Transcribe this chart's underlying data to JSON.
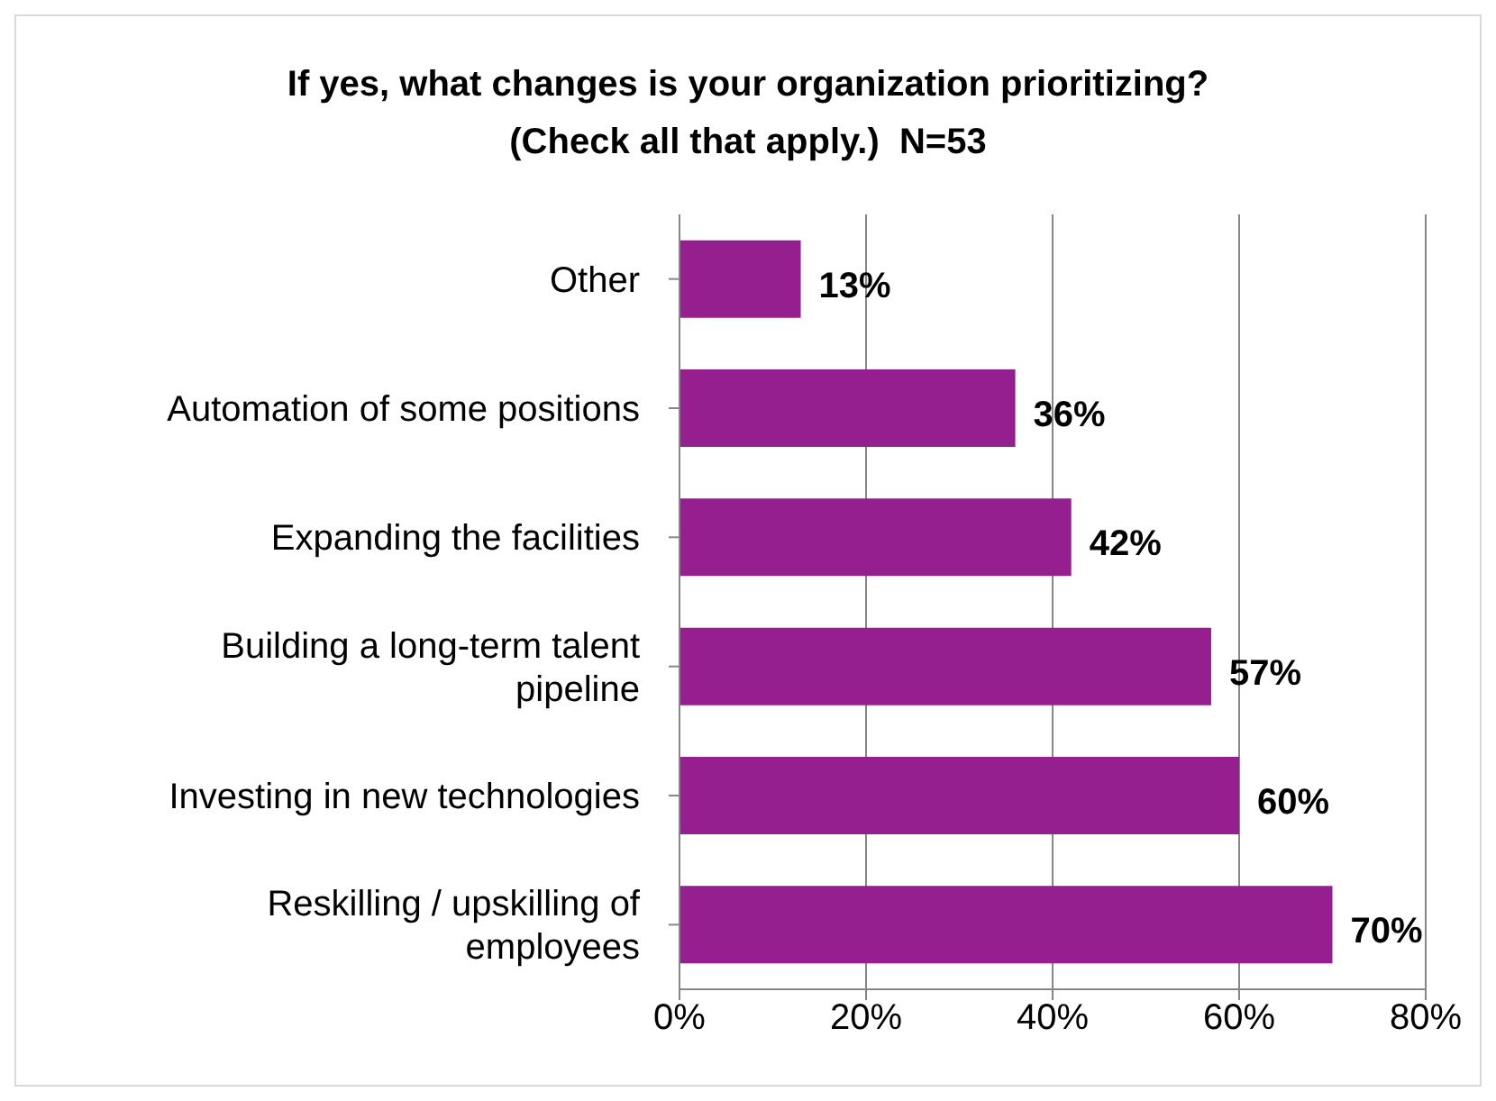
{
  "chart_data": {
    "type": "bar",
    "orientation": "horizontal",
    "title": "If yes, what changes is your organization prioritizing? (Check all that apply.)  N=53",
    "categories": [
      "Other",
      "Automation of some positions",
      "Expanding the facilities",
      "Building a long-term talent pipeline",
      "Investing in new technologies",
      "Reskilling / upskilling of employees"
    ],
    "values": [
      13,
      36,
      42,
      57,
      60,
      70
    ],
    "value_labels": [
      "13%",
      "36%",
      "42%",
      "57%",
      "60%",
      "70%"
    ],
    "color": "#951f8f",
    "xlim": [
      0,
      80
    ],
    "xticks": [
      {
        "value": 0,
        "label": "0%"
      },
      {
        "value": 20,
        "label": "20%"
      },
      {
        "value": 40,
        "label": "40%"
      },
      {
        "value": 60,
        "label": "60%"
      },
      {
        "value": 80,
        "label": "80%"
      }
    ],
    "grid": "x"
  }
}
